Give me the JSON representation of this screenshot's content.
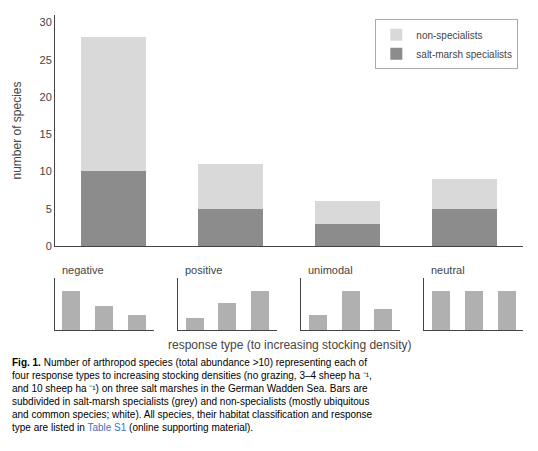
{
  "chart_data": [
    {
      "type": "bar",
      "stacked": true,
      "categories": [
        null,
        null,
        null,
        null
      ],
      "series": [
        {
          "name": "salt-marsh specialists",
          "color": "#8c8c8c",
          "values": [
            10,
            5,
            3,
            5
          ]
        },
        {
          "name": "non-specialists",
          "color": "#d9d9d9",
          "values": [
            18,
            6,
            3,
            4
          ]
        }
      ],
      "ylim": [
        0,
        31
      ],
      "yticks": [
        0,
        5,
        10,
        15,
        20,
        25,
        30
      ],
      "ylabel": "number of species",
      "xlabel": "response type (to increasing stocking density)",
      "legend": "upper right",
      "grid": false,
      "tick_labels": "y",
      "annotations": [
        {
          "text": "Fig. 1."
        },
        {
          "text": " Number of arthropod species (total abundance >10) representing each of\nfour response types to increasing stocking densities (no grazing, 3–4 sheep ha ⁻¹,\nand 10 sheep ha ⁻¹) on three salt marshes in the German Wadden Sea. Bars are\nsubdivided in salt-marsh specialists (grey) and non-specialists (mostly ubiquitous\nand common species; white). All species, their habitat classification and response\ntype are listed in "
        },
        {
          "text": "Table S1",
          "color": "#4472c4"
        },
        {
          "text": " (online supporting material)."
        }
      ]
    },
    {
      "type": "bar",
      "title": "negative",
      "categories": [
        null,
        null,
        null
      ],
      "values": [
        4.0,
        2.5,
        1.5
      ],
      "color": "#b0b0b0",
      "ylim": [
        0,
        5.4
      ],
      "grid": false,
      "tick_labels": false
    },
    {
      "type": "bar",
      "title": "positive",
      "categories": [
        null,
        null,
        null
      ],
      "values": [
        1.0,
        2.2,
        3.2
      ],
      "color": "#b0b0b0",
      "ylim": [
        0,
        4.32
      ],
      "grid": false,
      "tick_labels": false
    },
    {
      "type": "bar",
      "title": "unimodal",
      "categories": [
        null,
        null,
        null
      ],
      "values": [
        1.5,
        4.0,
        2.2
      ],
      "color": "#b0b0b0",
      "ylim": [
        0,
        5.4
      ],
      "grid": false,
      "tick_labels": false
    },
    {
      "type": "bar",
      "title": "neutral",
      "categories": [
        null,
        null,
        null
      ],
      "values": [
        2.5,
        2.5,
        2.5
      ],
      "color": "#b0b0b0",
      "ylim": [
        0,
        3.375
      ],
      "grid": false,
      "tick_labels": false
    }
  ]
}
